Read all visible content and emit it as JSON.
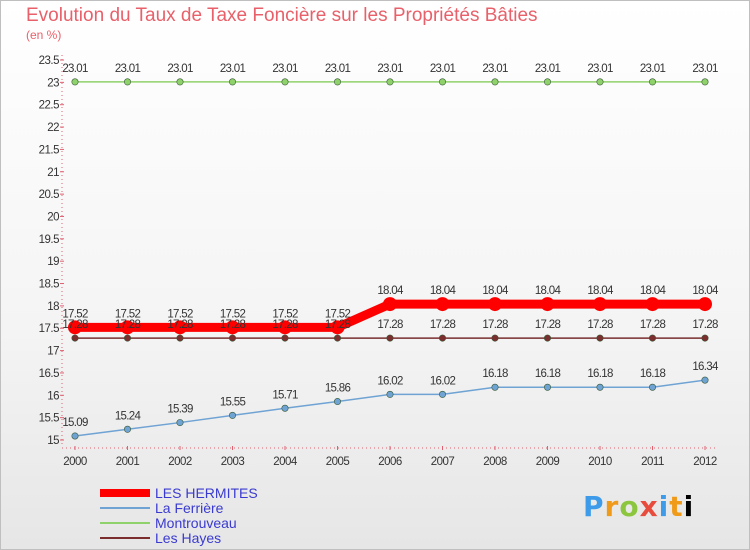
{
  "title": "Evolution du Taux de Taxe Foncière sur les Propriétés Bâties",
  "unit": "(en %)",
  "logo": "Proxiti",
  "chart_data": {
    "type": "line",
    "x": [
      "2000",
      "2001",
      "2002",
      "2003",
      "2004",
      "2005",
      "2006",
      "2007",
      "2008",
      "2009",
      "2010",
      "2011",
      "2012"
    ],
    "ylim": [
      15,
      23.5
    ],
    "yticks": [
      "15",
      "15.5",
      "16",
      "16.5",
      "17",
      "17.5",
      "18",
      "18.5",
      "19",
      "19.5",
      "20",
      "20.5",
      "21",
      "21.5",
      "22",
      "22.5",
      "23",
      "23.5"
    ],
    "grid": false,
    "legend_position": "bottom-left",
    "series": [
      {
        "name": "LES HERMITES",
        "color": "#ff0000",
        "values": [
          17.52,
          17.52,
          17.52,
          17.52,
          17.52,
          17.52,
          18.04,
          18.04,
          18.04,
          18.04,
          18.04,
          18.04,
          18.04
        ]
      },
      {
        "name": "La Ferrière",
        "color": "#6fa3d4",
        "values": [
          15.09,
          15.24,
          15.39,
          15.55,
          15.71,
          15.86,
          16.02,
          16.02,
          16.18,
          16.18,
          16.18,
          16.18,
          16.34
        ]
      },
      {
        "name": "Montrouveau",
        "color": "#8fd16a",
        "values": [
          23.01,
          23.01,
          23.01,
          23.01,
          23.01,
          23.01,
          23.01,
          23.01,
          23.01,
          23.01,
          23.01,
          23.01,
          23.01
        ]
      },
      {
        "name": "Les Hayes",
        "color": "#7a2e2e",
        "values": [
          17.28,
          17.28,
          17.28,
          17.28,
          17.28,
          17.28,
          17.28,
          17.28,
          17.28,
          17.28,
          17.28,
          17.28,
          17.28
        ]
      }
    ]
  }
}
